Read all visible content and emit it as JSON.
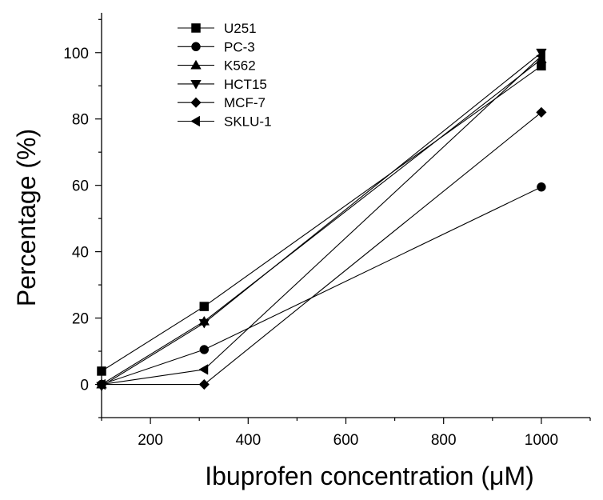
{
  "chart_data": {
    "type": "line",
    "xlabel": "Ibuprofen concentration  (μM)",
    "ylabel": "Percentage (%)",
    "xlim": [
      100,
      1100
    ],
    "ylim": [
      -10,
      112
    ],
    "xticks": [
      200,
      400,
      600,
      800,
      1000
    ],
    "yticks": [
      0,
      20,
      40,
      60,
      80,
      100
    ],
    "grid": false,
    "legend_position": "top-left",
    "series": [
      {
        "name": "U251",
        "marker": "square",
        "x": [
          100,
          310,
          1000
        ],
        "y": [
          4,
          23.5,
          96
        ]
      },
      {
        "name": "PC-3",
        "marker": "circle",
        "x": [
          100,
          310,
          1000
        ],
        "y": [
          0,
          10.5,
          59.5
        ]
      },
      {
        "name": "K562",
        "marker": "triangle-up",
        "x": [
          100,
          310,
          1000
        ],
        "y": [
          0,
          19,
          98
        ]
      },
      {
        "name": "HCT15",
        "marker": "triangle-down",
        "x": [
          100,
          310,
          1000
        ],
        "y": [
          -0.5,
          18.5,
          100
        ]
      },
      {
        "name": "MCF-7",
        "marker": "diamond",
        "x": [
          100,
          310,
          1000
        ],
        "y": [
          0,
          0,
          82
        ]
      },
      {
        "name": "SKLU-1",
        "marker": "triangle-left",
        "x": [
          100,
          310,
          1000
        ],
        "y": [
          0,
          4.5,
          99
        ]
      }
    ]
  }
}
